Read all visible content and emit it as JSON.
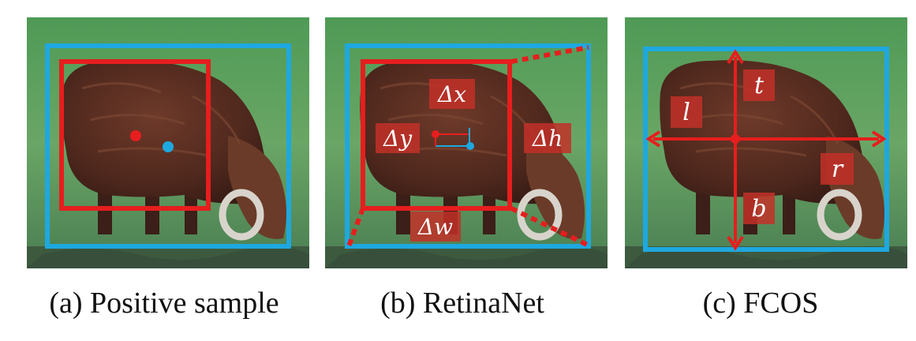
{
  "panels": [
    {
      "caption": "(a)  Positive sample"
    },
    {
      "caption": "(b)  RetinaNet",
      "labels": {
        "dx": "Δx",
        "dy": "Δy",
        "dh": "Δh",
        "dw": "Δw"
      }
    },
    {
      "caption": "(c)  FCOS",
      "labels": {
        "t": "t",
        "l": "l",
        "r": "r",
        "b": "b"
      }
    }
  ],
  "colors": {
    "anchor_box": "#e61e1e",
    "gt_box": "#1ea8e0",
    "grass": "#5f9a5c",
    "cow": "#5a2e22",
    "label_bg": "#c23028"
  }
}
